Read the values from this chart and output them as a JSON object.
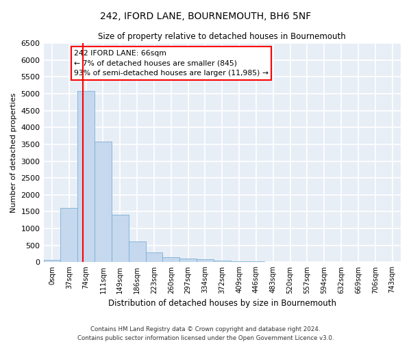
{
  "title": "242, IFORD LANE, BOURNEMOUTH, BH6 5NF",
  "subtitle": "Size of property relative to detached houses in Bournemouth",
  "xlabel": "Distribution of detached houses by size in Bournemouth",
  "ylabel": "Number of detached properties",
  "footnote1": "Contains HM Land Registry data © Crown copyright and database right 2024.",
  "footnote2": "Contains public sector information licensed under the Open Government Licence v3.0.",
  "bar_labels": [
    "0sqm",
    "37sqm",
    "74sqm",
    "111sqm",
    "149sqm",
    "186sqm",
    "223sqm",
    "260sqm",
    "297sqm",
    "334sqm",
    "372sqm",
    "409sqm",
    "446sqm",
    "483sqm",
    "520sqm",
    "557sqm",
    "594sqm",
    "632sqm",
    "669sqm",
    "706sqm",
    "743sqm"
  ],
  "bar_values": [
    60,
    1620,
    5080,
    3580,
    1400,
    610,
    290,
    155,
    120,
    85,
    45,
    35,
    20,
    15,
    10,
    7,
    5,
    3,
    2,
    1,
    0
  ],
  "bar_color": "#c5d8ee",
  "bar_edge_color": "#7aafd4",
  "ylim": [
    0,
    6500
  ],
  "yticks": [
    0,
    500,
    1000,
    1500,
    2000,
    2500,
    3000,
    3500,
    4000,
    4500,
    5000,
    5500,
    6000,
    6500
  ],
  "vline_x": 1.82,
  "vline_color": "red",
  "annotation_title": "242 IFORD LANE: 66sqm",
  "annotation_line1": "← 7% of detached houses are smaller (845)",
  "annotation_line2": "93% of semi-detached houses are larger (11,985) →",
  "annotation_box_color": "white",
  "annotation_border_color": "red",
  "background_color": "#e8eef6",
  "grid_color": "white"
}
